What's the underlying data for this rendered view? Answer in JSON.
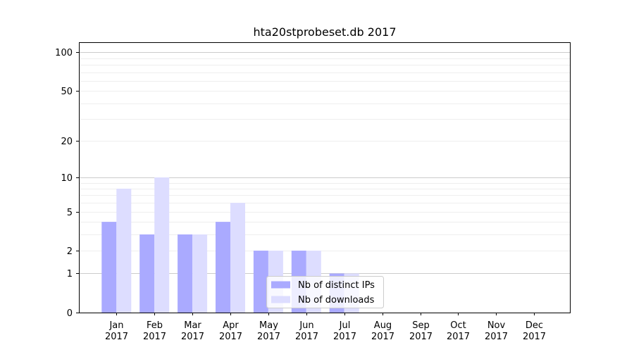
{
  "chart_data": {
    "type": "bar",
    "title": "hta20stprobeset.db 2017",
    "categories": [
      "Jan\n2017",
      "Feb\n2017",
      "Mar\n2017",
      "Apr\n2017",
      "May\n2017",
      "Jun\n2017",
      "Jul\n2017",
      "Aug\n2017",
      "Sep\n2017",
      "Oct\n2017",
      "Nov\n2017",
      "Dec\n2017"
    ],
    "series": [
      {
        "name": "Nb of distinct IPs",
        "color": "#aaaaff",
        "values": [
          4,
          3,
          3,
          4,
          2,
          2,
          1,
          0,
          0,
          0,
          0,
          0
        ]
      },
      {
        "name": "Nb of downloads",
        "color": "#ddddff",
        "values": [
          8,
          10,
          3,
          6,
          2,
          2,
          1,
          0,
          0,
          0,
          0,
          0
        ]
      }
    ],
    "y_scale": "log(1+y)",
    "y_ticks": [
      0,
      1,
      2,
      5,
      10,
      20,
      50,
      100
    ],
    "ylim": [
      0,
      120
    ],
    "xlabel": "",
    "ylabel": "",
    "legend_position": "bottom-center",
    "grid": "horizontal"
  }
}
